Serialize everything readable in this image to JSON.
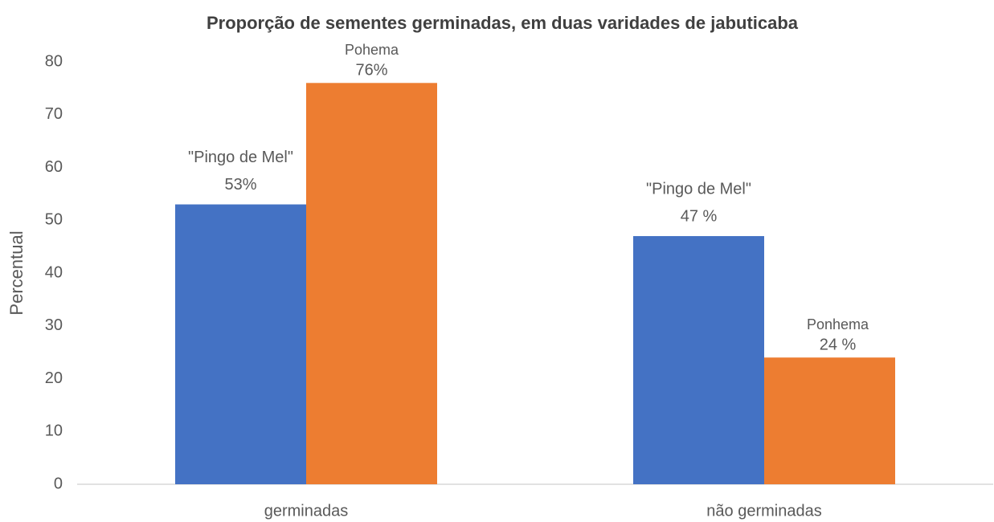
{
  "chart_data": {
    "type": "bar",
    "title": "Proporção de sementes germinadas, em duas varidades de jabuticaba",
    "y_label": "Percentual",
    "categories": [
      "germinadas",
      "não germinadas"
    ],
    "series": [
      {
        "color": "#4472c4",
        "values": [
          53,
          47
        ],
        "value_labels": [
          "53%",
          "47 %"
        ],
        "point_labels": [
          "\"Pingo de Mel\"",
          "\"Pingo de Mel\""
        ]
      },
      {
        "color": "#ed7d31",
        "values": [
          76,
          24
        ],
        "value_labels": [
          "76%",
          "24 %"
        ],
        "point_labels": [
          "Pohema",
          "Ponhema"
        ]
      }
    ],
    "ylim": [
      0,
      80
    ],
    "yticks": [
      0,
      10,
      20,
      30,
      40,
      50,
      60,
      70,
      80
    ],
    "grid": false
  }
}
